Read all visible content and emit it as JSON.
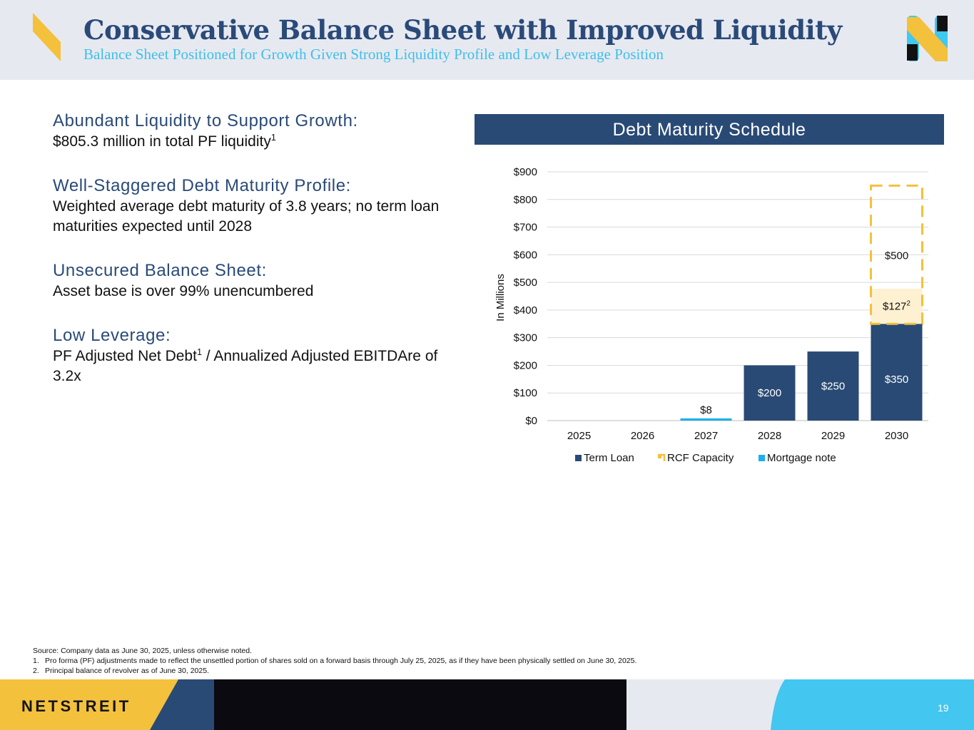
{
  "header": {
    "title": "Conservative Balance Sheet with Improved Liquidity",
    "subtitle": "Balance Sheet Positioned for Growth Given Strong Liquidity Profile and Low Leverage Position"
  },
  "sections": [
    {
      "heading": "Abundant Liquidity to Support Growth:",
      "body": "$805.3 million in total PF liquidity",
      "sup": "1",
      "body_after": ""
    },
    {
      "heading": "Well-Staggered Debt Maturity Profile:",
      "body": "Weighted average debt maturity of 3.8 years; no term loan maturities expected until 2028",
      "sup": "",
      "body_after": ""
    },
    {
      "heading": "Unsecured Balance Sheet:",
      "body": "Asset base is over 99% unencumbered",
      "sup": "",
      "body_after": ""
    },
    {
      "heading": "Low Leverage:",
      "body": "PF Adjusted Net Debt",
      "sup": "1",
      "body_after": " / Annualized Adjusted EBITDAre of 3.2x"
    }
  ],
  "chart_header": "Debt Maturity Schedule",
  "chart_data": {
    "type": "bar",
    "stacked": true,
    "title": "Debt Maturity Schedule",
    "ylabel": "In Millions",
    "xlabel": "",
    "categories": [
      "2025",
      "2026",
      "2027",
      "2028",
      "2029",
      "2030"
    ],
    "ylim": [
      0,
      900
    ],
    "yticks": [
      0,
      100,
      200,
      300,
      400,
      500,
      600,
      700,
      800,
      900
    ],
    "ytick_labels": [
      "$0",
      "$100",
      "$200",
      "$300",
      "$400",
      "$500",
      "$600",
      "$700",
      "$800",
      "$900"
    ],
    "grid": true,
    "legend_position": "bottom",
    "series": [
      {
        "name": "Term Loan",
        "color": "#294a75",
        "values": [
          0,
          0,
          0,
          200,
          250,
          350
        ],
        "labels": [
          "",
          "",
          "",
          "$200",
          "$250",
          "$350"
        ]
      },
      {
        "name": "RCF Capacity",
        "color": "#f4c13c",
        "values": [
          0,
          0,
          0,
          0,
          0,
          500
        ],
        "labels": [
          "",
          "",
          "",
          "",
          "",
          "$500"
        ]
      },
      {
        "name": "Mortgage note",
        "color": "#1ab0e8",
        "values": [
          0,
          0,
          8,
          0,
          0,
          0
        ],
        "labels": [
          "",
          "",
          "$8",
          "",
          "",
          ""
        ]
      }
    ],
    "annotations": [
      {
        "category": "2030",
        "text": "$127",
        "sup": "2",
        "value": 127,
        "note": "drawn portion of RCF"
      }
    ]
  },
  "footnotes": {
    "source": "Source: Company data as June 30, 2025, unless otherwise noted.",
    "items": [
      {
        "num": "1.",
        "text": "Pro forma (PF) adjustments made to reflect the unsettled portion of shares sold on a forward basis through July 25, 2025, as if they have been physically settled on June 30, 2025."
      },
      {
        "num": "2.",
        "text": "Principal balance of revolver as of June 30, 2025."
      }
    ]
  },
  "footer": {
    "brand": "NETSTREIT",
    "page_number": "19"
  },
  "colors": {
    "navy": "#294a75",
    "gold": "#f4c13c",
    "cyan": "#1ab0e8",
    "header_bg": "#e7e9f1",
    "dark": "#0a0a10"
  }
}
